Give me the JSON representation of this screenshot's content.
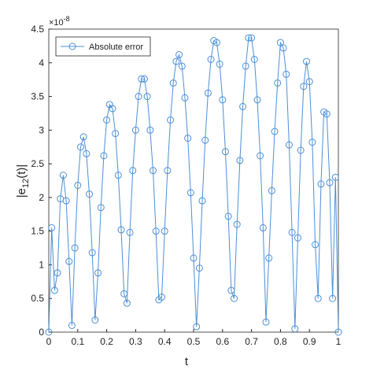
{
  "chart_data": {
    "type": "line",
    "xlabel": "t",
    "ylabel": {
      "text": "|e",
      "sub": "12",
      "tail": "(t)|"
    },
    "y_multiplier": {
      "base": "×10",
      "exponent": "-8"
    },
    "x": [
      0,
      0.01,
      0.02,
      0.03,
      0.04,
      0.05,
      0.06,
      0.07,
      0.08,
      0.09,
      0.1,
      0.11,
      0.12,
      0.13,
      0.14,
      0.15,
      0.16,
      0.17,
      0.18,
      0.19,
      0.2,
      0.21,
      0.22,
      0.23,
      0.24,
      0.25,
      0.26,
      0.27,
      0.28,
      0.29,
      0.3,
      0.31,
      0.32,
      0.33,
      0.34,
      0.35,
      0.36,
      0.37,
      0.38,
      0.39,
      0.4,
      0.41,
      0.42,
      0.43,
      0.44,
      0.45,
      0.46,
      0.47,
      0.48,
      0.49,
      0.5,
      0.51,
      0.52,
      0.53,
      0.54,
      0.55,
      0.56,
      0.57,
      0.58,
      0.59,
      0.6,
      0.61,
      0.62,
      0.63,
      0.64,
      0.65,
      0.66,
      0.67,
      0.68,
      0.69,
      0.7,
      0.71,
      0.72,
      0.73,
      0.74,
      0.75,
      0.76,
      0.77,
      0.78,
      0.79,
      0.8,
      0.81,
      0.82,
      0.83,
      0.84,
      0.85,
      0.86,
      0.87,
      0.88,
      0.89,
      0.9,
      0.91,
      0.92,
      0.93,
      0.94,
      0.95,
      0.96,
      0.97,
      0.98,
      0.99,
      1
    ],
    "series": [
      {
        "name": "Absolute error",
        "color": "#4d8fd6",
        "values": [
          0,
          1.55,
          0.62,
          0.88,
          1.98,
          2.33,
          1.95,
          1.05,
          0.1,
          1.25,
          2.18,
          2.75,
          2.9,
          2.65,
          2.05,
          1.18,
          0.18,
          0.88,
          1.85,
          2.62,
          3.15,
          3.38,
          3.32,
          2.95,
          2.33,
          1.52,
          0.57,
          0.43,
          1.48,
          2.4,
          3.0,
          3.5,
          3.76,
          3.76,
          3.5,
          3.0,
          2.4,
          1.5,
          0.48,
          0.52,
          1.5,
          2.4,
          3.15,
          3.7,
          4.02,
          4.12,
          3.95,
          3.48,
          2.88,
          2.07,
          1.1,
          0.08,
          0.95,
          1.95,
          2.85,
          3.55,
          4.05,
          4.33,
          4.3,
          3.98,
          3.45,
          2.68,
          1.72,
          0.62,
          0.5,
          1.6,
          2.55,
          3.35,
          3.95,
          4.37,
          4.37,
          4.05,
          3.45,
          2.62,
          1.55,
          0.15,
          1.1,
          2.1,
          2.98,
          3.7,
          4.3,
          4.22,
          3.83,
          2.78,
          1.48,
          0.05,
          1.4,
          2.7,
          3.65,
          4.02,
          3.72,
          2.82,
          1.3,
          0.5,
          2.2,
          3.27,
          3.24,
          2.22,
          0.5,
          2.3,
          0
        ]
      }
    ],
    "xlim": [
      0,
      1
    ],
    "xticks": [
      0,
      0.1,
      0.2,
      0.3,
      0.4,
      0.5,
      0.6,
      0.7,
      0.8,
      0.9,
      1
    ],
    "ylim": [
      0,
      4.5
    ],
    "yticks": [
      0,
      0.5,
      1,
      1.5,
      2,
      2.5,
      3,
      3.5,
      4,
      4.5
    ],
    "legend": "upper left",
    "marker": "circle"
  }
}
